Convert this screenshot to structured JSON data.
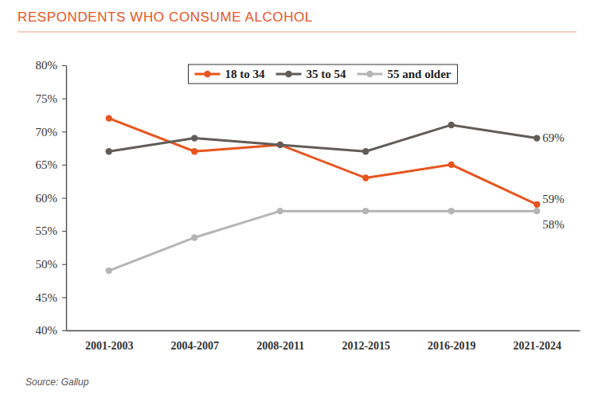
{
  "chart_data": {
    "type": "line",
    "title": "RESPONDENTS WHO CONSUME ALCOHOL",
    "source": "Source: Gallup",
    "categories": [
      "2001-2003",
      "2004-2007",
      "2008-2011",
      "2012-2015",
      "2016-2019",
      "2021-2024"
    ],
    "series": [
      {
        "name": "18 to 34",
        "color": "#e8541e",
        "marker": "circle",
        "values": [
          72,
          67,
          68,
          63,
          65,
          59
        ],
        "value_labels": [
          null,
          null,
          null,
          null,
          null,
          "59%"
        ]
      },
      {
        "name": "35 to 54",
        "color": "#615c57",
        "marker": "circle",
        "values": [
          67,
          69,
          68,
          67,
          71,
          69
        ],
        "value_labels": [
          null,
          null,
          null,
          null,
          null,
          "69%"
        ]
      },
      {
        "name": "55 and older",
        "color": "#b5b5b5",
        "marker": "circle",
        "values": [
          49,
          54,
          58,
          58,
          58,
          58
        ],
        "value_labels": [
          null,
          null,
          null,
          null,
          null,
          "58%"
        ]
      }
    ],
    "ylim": [
      40,
      80
    ],
    "yticks": [
      {
        "value": 40,
        "label": "40%"
      },
      {
        "value": 45,
        "label": "45%"
      },
      {
        "value": 50,
        "label": "50%"
      },
      {
        "value": 55,
        "label": "55%"
      },
      {
        "value": 60,
        "label": "60%"
      },
      {
        "value": 65,
        "label": "65%"
      },
      {
        "value": 70,
        "label": "70%"
      },
      {
        "value": 75,
        "label": "75%"
      },
      {
        "value": 80,
        "label": "80%"
      }
    ],
    "grid": false,
    "legend": "top",
    "data_labels": true
  }
}
